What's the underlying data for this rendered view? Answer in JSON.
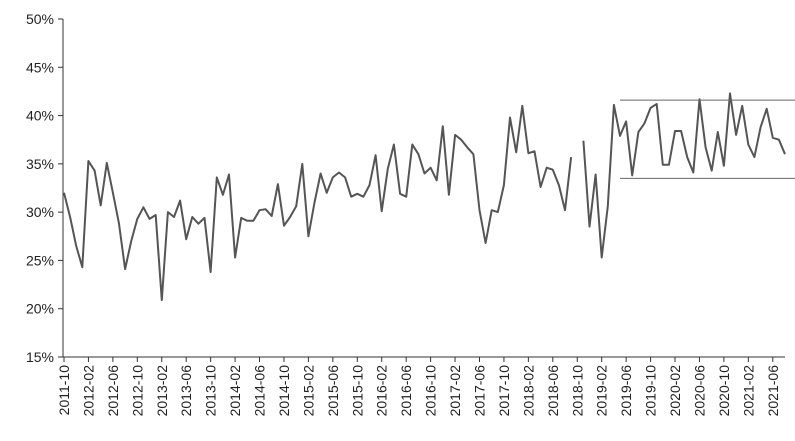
{
  "chart_data": {
    "type": "line",
    "color": "#555555",
    "hline_color": "#666666",
    "categories": [
      "2011-10",
      null,
      null,
      null,
      "2012-02",
      null,
      null,
      null,
      "2012-06",
      null,
      null,
      null,
      "2012-10",
      null,
      null,
      null,
      "2013-02",
      null,
      null,
      null,
      "2013-06",
      null,
      null,
      null,
      "2013-10",
      null,
      null,
      null,
      "2014-02",
      null,
      null,
      null,
      "2014-06",
      null,
      null,
      null,
      "2014-10",
      null,
      null,
      null,
      "2015-02",
      null,
      null,
      null,
      "2015-06",
      null,
      null,
      null,
      "2015-10",
      null,
      null,
      null,
      "2016-02",
      null,
      null,
      null,
      "2016-06",
      null,
      null,
      null,
      "2016-10",
      null,
      null,
      null,
      "2017-02",
      null,
      null,
      null,
      "2017-06",
      null,
      null,
      null,
      "2017-10",
      null,
      null,
      null,
      "2018-02",
      null,
      null,
      null,
      "2018-06",
      null,
      null,
      null,
      "2018-10",
      null,
      null,
      null,
      "2019-02",
      null,
      null,
      null,
      "2019-06",
      null,
      null,
      null,
      "2019-10",
      null,
      null,
      null,
      "2020-02",
      null,
      null,
      null,
      "2020-06",
      null,
      null,
      null,
      "2020-10",
      null,
      null,
      null,
      "2021-02",
      null,
      null,
      null,
      "2021-06",
      null,
      null
    ],
    "values": [
      32,
      29.5,
      26.5,
      24.3,
      35.3,
      34.3,
      30.7,
      35.1,
      32,
      28.8,
      24.1,
      27,
      29.3,
      30.5,
      29.3,
      29.7,
      20.9,
      30,
      29.5,
      31.2,
      27.2,
      29.5,
      28.8,
      29.4,
      23.8,
      33.6,
      31.8,
      33.9,
      25.3,
      29.4,
      29.1,
      29.1,
      30.2,
      30.3,
      29.6,
      32.9,
      28.6,
      29.5,
      30.6,
      35,
      27.5,
      31,
      34,
      32,
      33.6,
      34.1,
      33.6,
      31.6,
      31.9,
      31.6,
      32.8,
      35.9,
      30.1,
      34.5,
      37,
      31.9,
      31.6,
      37,
      36,
      34,
      34.6,
      33.3,
      38.9,
      31.8,
      38,
      37.5,
      36.7,
      36,
      30.2,
      26.8,
      30.2,
      30,
      32.8,
      39.8,
      36.2,
      41,
      36.1,
      36.3,
      32.6,
      34.6,
      34.4,
      32.8,
      30.2,
      35.7,
      null,
      37.4,
      28.5,
      33.9,
      25.3,
      30.6,
      41.1,
      37.9,
      39.4,
      33.8,
      38.3,
      39.2,
      40.8,
      41.2,
      34.9,
      34.9,
      38.4,
      38.4,
      35.7,
      34.1,
      41.7,
      36.7,
      34.3,
      38.3,
      34.8,
      42.3,
      38,
      41,
      37,
      35.7,
      38.8,
      40.7,
      37.7,
      37.5,
      36
    ],
    "hlines": [
      41.6,
      33.5
    ],
    "ylim": [
      15,
      50
    ],
    "yticks": [
      {
        "value": 15,
        "label": "15%"
      },
      {
        "value": 20,
        "label": "20%"
      },
      {
        "value": 25,
        "label": "25%"
      },
      {
        "value": 30,
        "label": "30%"
      },
      {
        "value": 35,
        "label": "35%"
      },
      {
        "value": 40,
        "label": "40%"
      },
      {
        "value": 45,
        "label": "45%"
      },
      {
        "value": 50,
        "label": "50%"
      }
    ]
  }
}
